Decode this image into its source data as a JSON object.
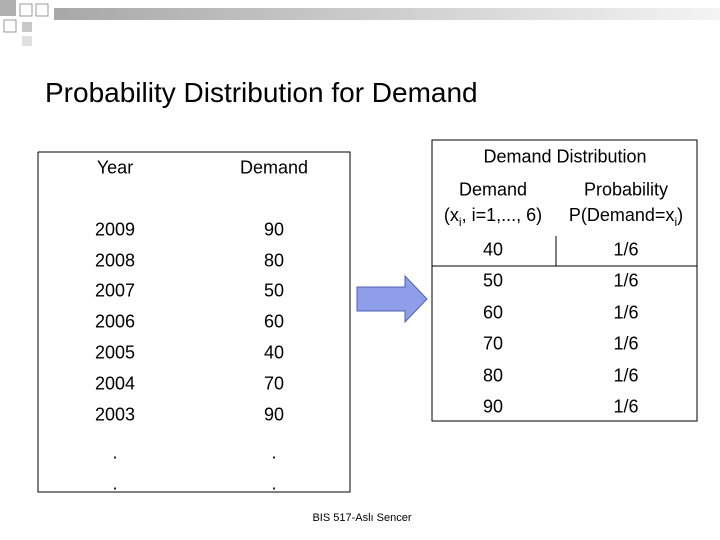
{
  "title": "Probability Distribution for Demand",
  "left_table": {
    "headers": [
      "Year",
      "Demand"
    ],
    "rows": [
      [
        "2009",
        "90"
      ],
      [
        "2008",
        "80"
      ],
      [
        "2007",
        "50"
      ],
      [
        "2006",
        "60"
      ],
      [
        "2005",
        "40"
      ],
      [
        "2004",
        "70"
      ],
      [
        "2003",
        "90"
      ],
      [
        ".",
        "."
      ],
      [
        ".",
        "."
      ]
    ]
  },
  "right_table": {
    "title": "Demand Distribution",
    "columns": [
      {
        "line1": "Demand",
        "line2": [
          "(x",
          "i",
          ", i=1,..., 6)"
        ]
      },
      {
        "line1": "Probability",
        "line2": [
          "P(Demand=x",
          "i",
          ")"
        ]
      }
    ],
    "rows": [
      [
        "40",
        "1/6"
      ],
      [
        "50",
        "1/6"
      ],
      [
        "60",
        "1/6"
      ],
      [
        "70",
        "1/6"
      ],
      [
        "80",
        "1/6"
      ],
      [
        "90",
        "1/6"
      ]
    ]
  },
  "footer": "BIS 517-Aslı Sencer"
}
